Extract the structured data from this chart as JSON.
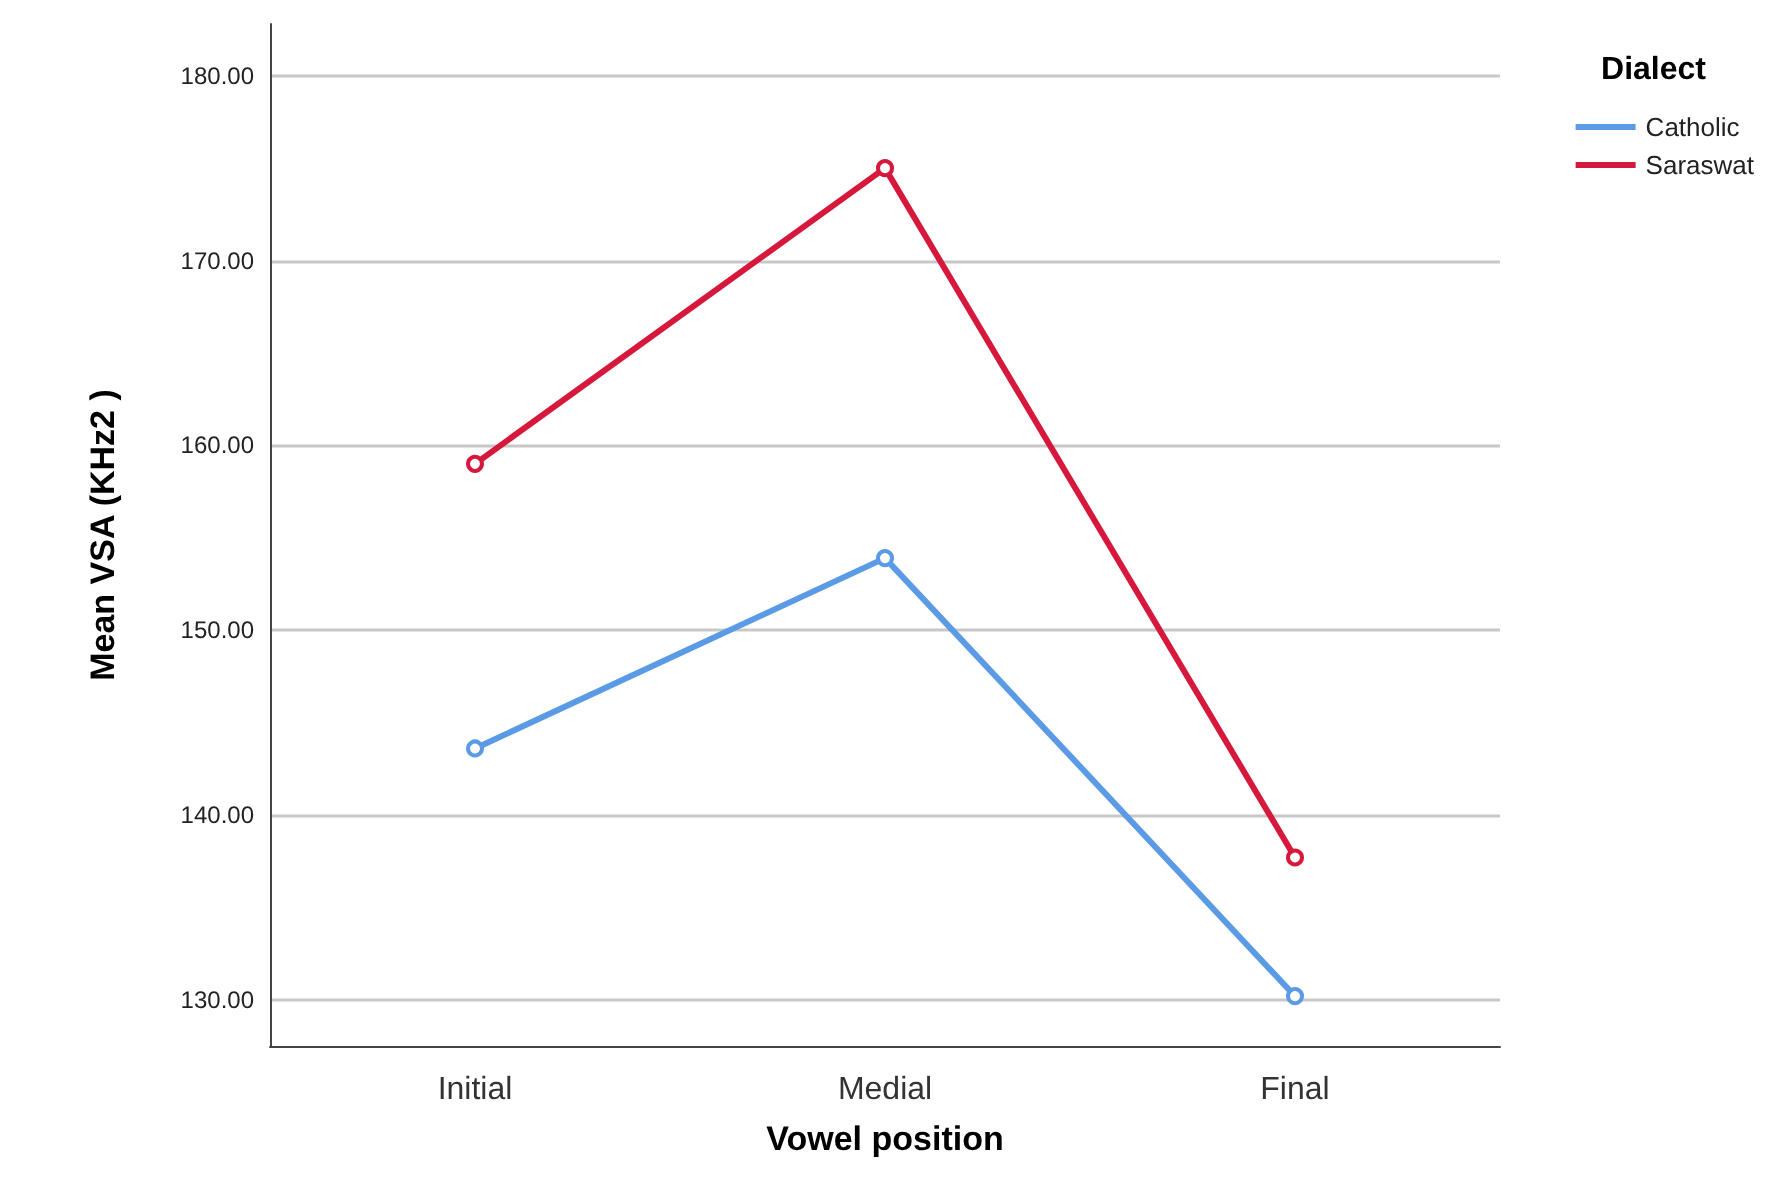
{
  "chart_data": {
    "type": "line",
    "xlabel": "Vowel position",
    "ylabel": "Mean VSA (KHz2 )",
    "legend_title": "Dialect",
    "categories": [
      "Initial",
      "Medial",
      "Final"
    ],
    "series": [
      {
        "name": "Catholic",
        "color": "#5b9be6",
        "values": [
          143.6,
          153.9,
          130.2
        ]
      },
      {
        "name": "Saraswat",
        "color": "#d6183c",
        "values": [
          159.0,
          175.0,
          137.7
        ]
      }
    ],
    "ylim": [
      127.5,
      182.8
    ],
    "yticks": [
      {
        "value": 130,
        "label": "130.00"
      },
      {
        "value": 140,
        "label": "140.00"
      },
      {
        "value": 150,
        "label": "150.00"
      },
      {
        "value": 160,
        "label": "160.00"
      },
      {
        "value": 170,
        "label": "170.00"
      },
      {
        "value": 180,
        "label": "180.00"
      }
    ],
    "grid": "y",
    "legend": "top right",
    "marker": "circle",
    "line_style": "solid"
  }
}
